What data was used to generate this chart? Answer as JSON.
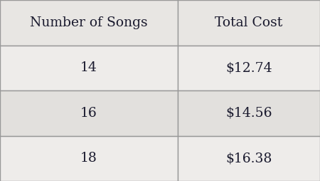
{
  "col_headers": [
    "Number of Songs",
    "Total Cost"
  ],
  "rows": [
    [
      "14",
      "$12.74"
    ],
    [
      "16",
      "$14.56"
    ],
    [
      "18",
      "$16.38"
    ]
  ],
  "header_bg": "#e8e6e3",
  "row_bg_light": "#eeecea",
  "row_bg_dark": "#e2e0dd",
  "border_color": "#999999",
  "text_color": "#1a1a2e",
  "header_fontsize": 13.5,
  "cell_fontsize": 13.5,
  "fig_bg": "#e0dedd"
}
